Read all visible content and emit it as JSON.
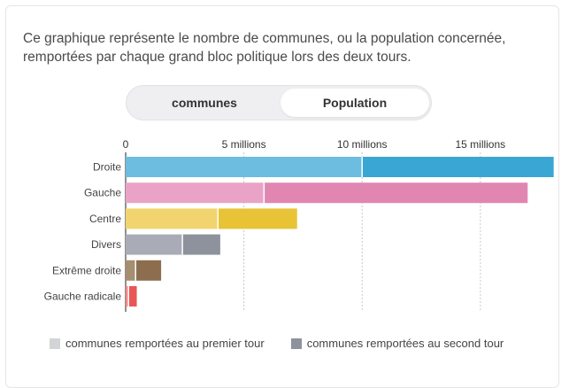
{
  "intro_text": "Ce graphique représente le nombre de communes, ou la population concernée, remportées par chaque grand bloc politique lors des deux tours.",
  "toggle": {
    "left_label": "communes",
    "right_label": "Population",
    "selected": "Population"
  },
  "chart_data": {
    "type": "bar",
    "orientation": "horizontal",
    "stacked": true,
    "xlim": [
      0,
      18000000
    ],
    "ticks": [
      {
        "value": 0,
        "label": "0"
      },
      {
        "value": 5000000,
        "label": "5 millions"
      },
      {
        "value": 10000000,
        "label": "10 millions"
      },
      {
        "value": 15000000,
        "label": "15 millions"
      }
    ],
    "categories": [
      "Droite",
      "Gauche",
      "Centre",
      "Divers",
      "Extrême droite",
      "Gauche radicale"
    ],
    "series": [
      {
        "name": "communes remportées au premier tour",
        "values": [
          10000000,
          5850000,
          3900000,
          2400000,
          420000,
          120000
        ]
      },
      {
        "name": "communes remportées au second tour",
        "values": [
          8100000,
          11150000,
          3350000,
          1600000,
          1080000,
          350000
        ]
      }
    ],
    "colors": {
      "Droite": [
        "#6dbde0",
        "#3aa6d4"
      ],
      "Gauche": [
        "#eaa3c6",
        "#e086b1"
      ],
      "Centre": [
        "#f1d46e",
        "#e8c336"
      ],
      "Divers": [
        "#a9acb6",
        "#8e929c"
      ],
      "Extrême droite": [
        "#a68e71",
        "#8c6e4e"
      ],
      "Gauche radicale": [
        "#f28686",
        "#e95656"
      ]
    },
    "legend_position": "bottom",
    "grid": true
  },
  "legend": [
    {
      "label": "communes remportées au premier tour",
      "color": "#d3d4d8"
    },
    {
      "label": "communes remportées au second tour",
      "color": "#8e929c"
    }
  ]
}
